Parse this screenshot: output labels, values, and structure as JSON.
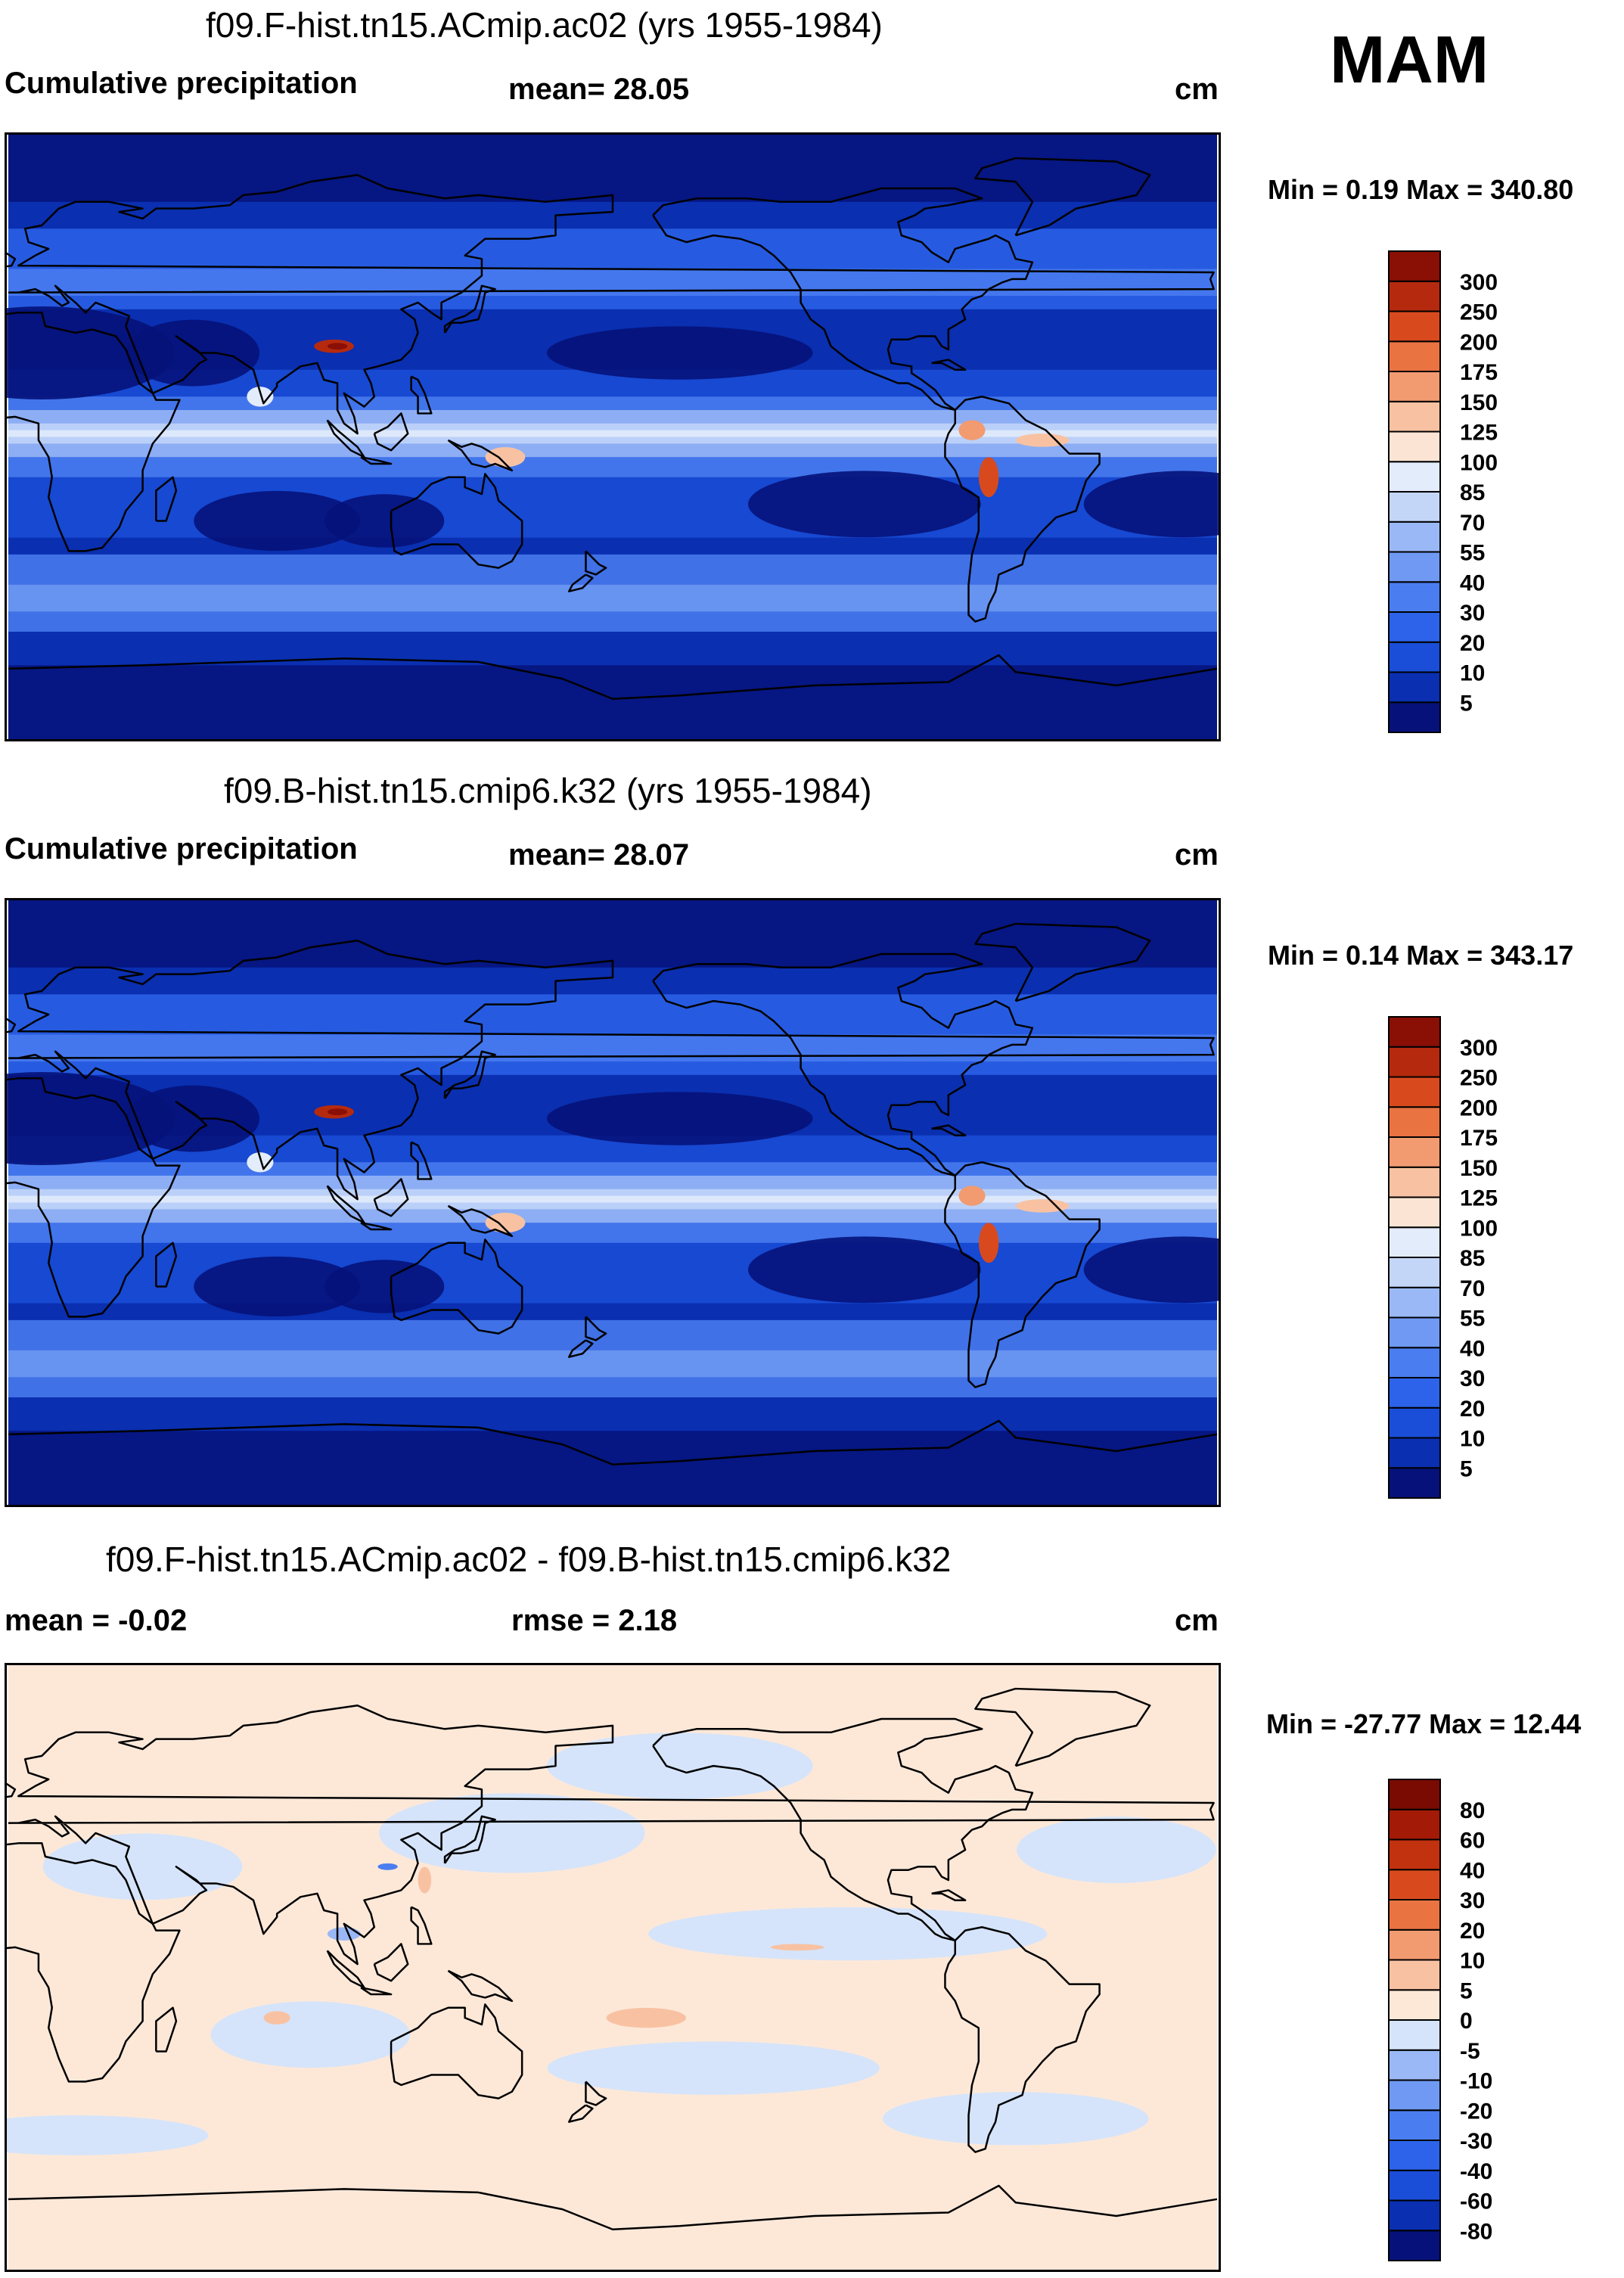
{
  "season": "MAM",
  "panels": [
    {
      "title": "f09.F-hist.tn15.ACmip.ac02 (yrs 1955-1984)",
      "left": "Cumulative precipitation",
      "center": "mean=  28.05",
      "units": "cm",
      "minmax": "Min =   0.19 Max = 340.80",
      "type": "precip"
    },
    {
      "title": "f09.B-hist.tn15.cmip6.k32 (yrs 1955-1984)",
      "left": "Cumulative precipitation",
      "center": "mean=  28.07",
      "units": "cm",
      "minmax": "Min =   0.14 Max = 343.17",
      "type": "precip"
    },
    {
      "title": "f09.F-hist.tn15.ACmip.ac02 - f09.B-hist.tn15.cmip6.k32",
      "left": "mean =  -0.02",
      "center": "rmse =   2.18",
      "units": "cm",
      "minmax": "Min = -27.77 Max =  12.44",
      "type": "diff"
    }
  ],
  "chart_data": [
    {
      "type": "heatmap",
      "title": "f09.F-hist.tn15.ACmip.ac02 (yrs 1955-1984)",
      "variable": "Cumulative precipitation",
      "units": "cm",
      "mean": 28.05,
      "min": 0.19,
      "max": 340.8,
      "colorbar_levels": [
        "5",
        "10",
        "20",
        "30",
        "40",
        "55",
        "70",
        "85",
        "100",
        "125",
        "150",
        "175",
        "200",
        "250",
        "300"
      ],
      "colorbar_colors": [
        "#06127a",
        "#0a2fb0",
        "#1a4ed8",
        "#2c63ea",
        "#4a7df0",
        "#6f99f2",
        "#9ab8f6",
        "#c3d6f8",
        "#e3ecfb",
        "#fbe4d3",
        "#f8c2a2",
        "#f29a70",
        "#ea7342",
        "#d84a1e",
        "#b52a0e",
        "#8a0f05"
      ]
    },
    {
      "type": "heatmap",
      "title": "f09.B-hist.tn15.cmip6.k32 (yrs 1955-1984)",
      "variable": "Cumulative precipitation",
      "units": "cm",
      "mean": 28.07,
      "min": 0.14,
      "max": 343.17,
      "colorbar_levels": [
        "5",
        "10",
        "20",
        "30",
        "40",
        "55",
        "70",
        "85",
        "100",
        "125",
        "150",
        "175",
        "200",
        "250",
        "300"
      ],
      "colorbar_colors": [
        "#06127a",
        "#0a2fb0",
        "#1a4ed8",
        "#2c63ea",
        "#4a7df0",
        "#6f99f2",
        "#9ab8f6",
        "#c3d6f8",
        "#e3ecfb",
        "#fbe4d3",
        "#f8c2a2",
        "#f29a70",
        "#ea7342",
        "#d84a1e",
        "#b52a0e",
        "#8a0f05"
      ]
    },
    {
      "type": "heatmap",
      "title": "f09.F-hist.tn15.ACmip.ac02 - f09.B-hist.tn15.cmip6.k32",
      "units": "cm",
      "mean": -0.02,
      "rmse": 2.18,
      "min": -27.77,
      "max": 12.44,
      "colorbar_levels": [
        "-80",
        "-60",
        "-40",
        "-30",
        "-20",
        "-10",
        "-5",
        "0",
        "5",
        "10",
        "20",
        "30",
        "40",
        "60",
        "80"
      ],
      "colorbar_colors": [
        "#06127a",
        "#0a2fb0",
        "#1a4ed8",
        "#2c63ea",
        "#4a7df0",
        "#6f99f2",
        "#9ab8f6",
        "#d5e4fa",
        "#fde8d8",
        "#f8c2a2",
        "#f29a70",
        "#ea7342",
        "#d84a1e",
        "#c2320f",
        "#a31a07",
        "#7a0b03"
      ]
    }
  ]
}
